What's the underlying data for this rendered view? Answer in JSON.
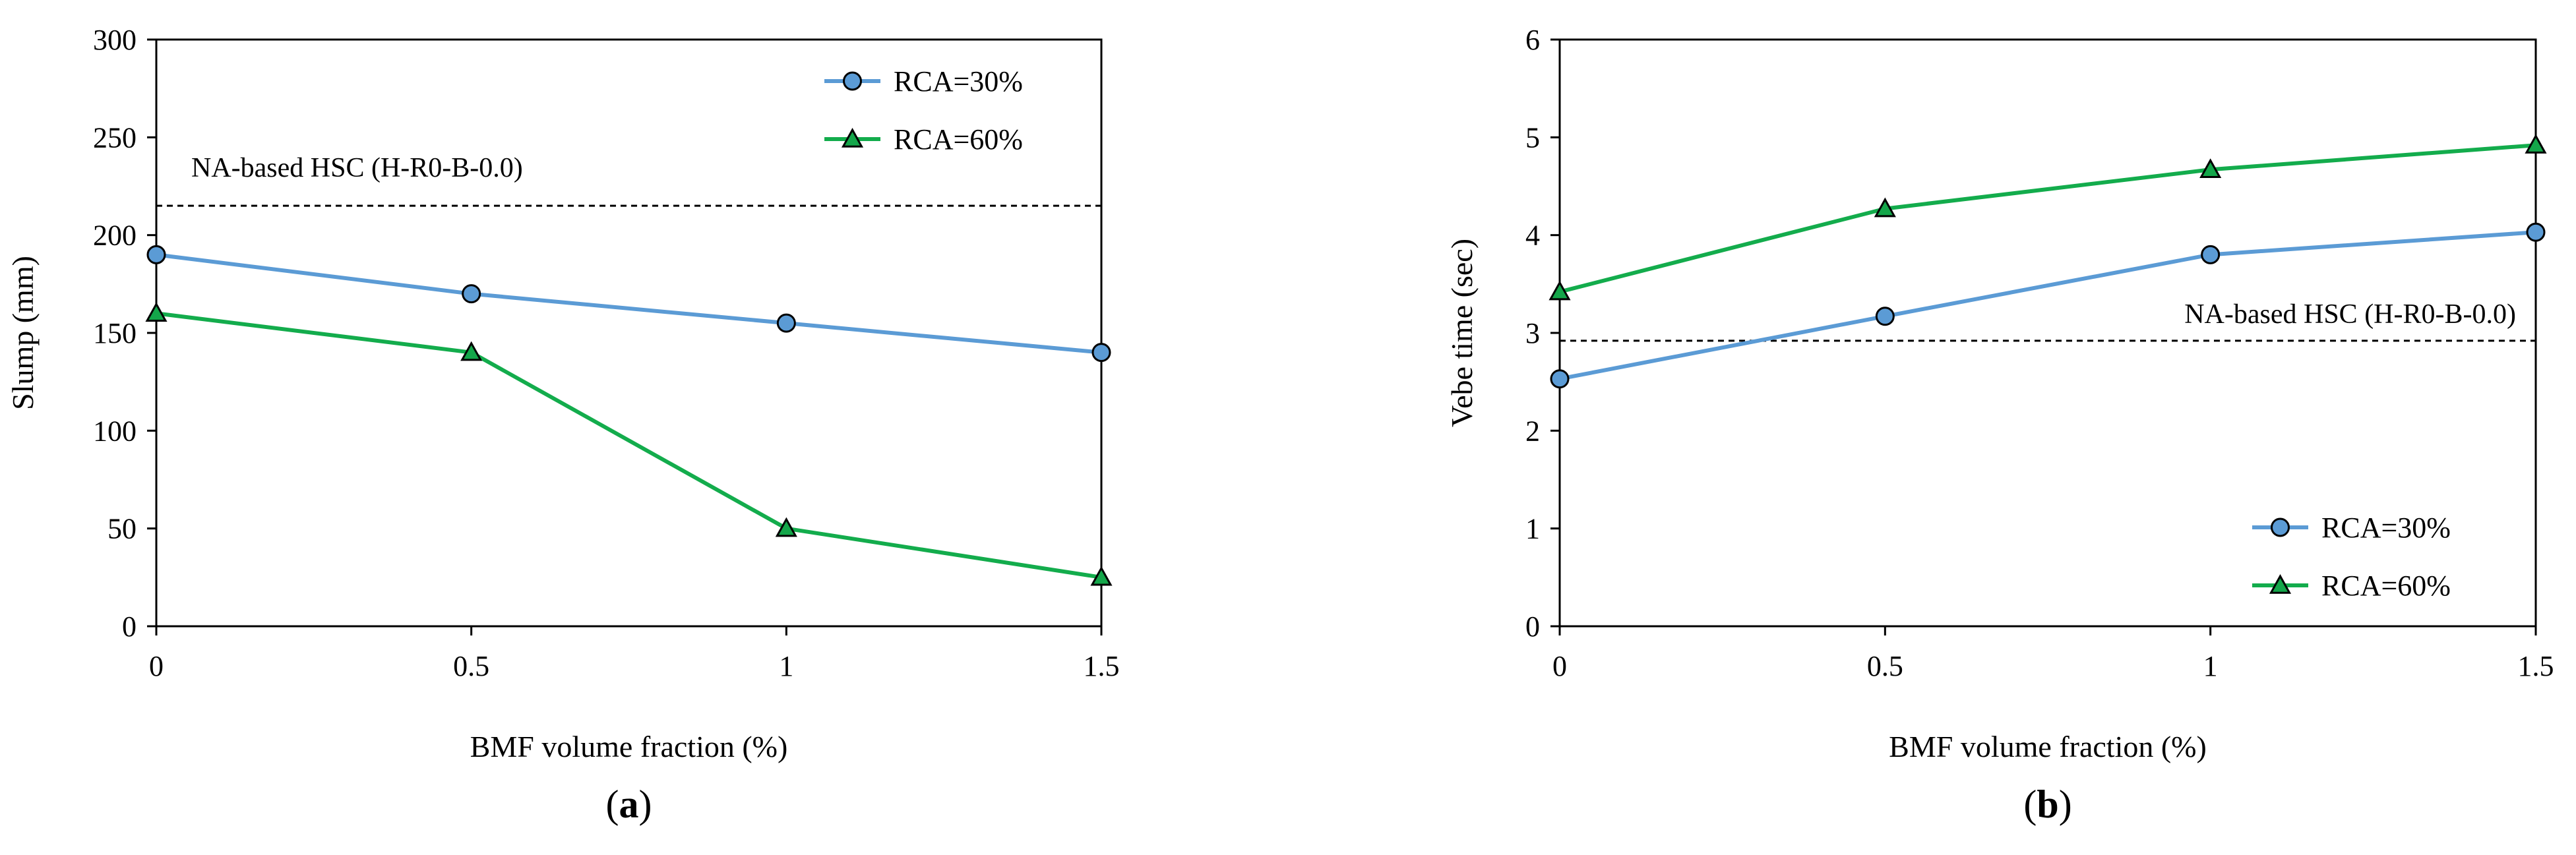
{
  "colors": {
    "series_30": "#5B9BD5",
    "series_30_marker": "#5B9BD5",
    "series_60": "#13AC4C",
    "series_60_marker": "#14A64A",
    "axis": "#000000",
    "reference": "#000000"
  },
  "chart_data": [
    {
      "id": "a",
      "type": "line",
      "panel_label": "a",
      "xlabel": "BMF volume fraction (%)",
      "ylabel": "Slump (mm)",
      "x": [
        0,
        0.5,
        1,
        1.5
      ],
      "x_ticks": [
        0,
        0.5,
        1,
        1.5
      ],
      "x_tick_labels": [
        "0",
        "0.5",
        "1",
        "1.5"
      ],
      "xlim": [
        0,
        1.5
      ],
      "ylim": [
        0,
        300
      ],
      "y_ticks": [
        0,
        50,
        100,
        150,
        200,
        250,
        300
      ],
      "grid": false,
      "legend_position": "top-right",
      "series": [
        {
          "name": "RCA=30%",
          "marker": "circle",
          "values": [
            190,
            170,
            155,
            140
          ]
        },
        {
          "name": "RCA=60%",
          "marker": "triangle",
          "values": [
            160,
            140,
            50,
            25
          ]
        }
      ],
      "reference_line": {
        "label": "NA-based HSC (H-R0-B-0.0)",
        "value": 215
      }
    },
    {
      "id": "b",
      "type": "line",
      "panel_label": "b",
      "xlabel": "BMF volume fraction (%)",
      "ylabel": "Vebe time (sec)",
      "x": [
        0,
        0.5,
        1,
        1.5
      ],
      "x_ticks": [
        0,
        0.5,
        1,
        1.5
      ],
      "x_tick_labels": [
        "0",
        "0.5",
        "1",
        "1.5"
      ],
      "xlim": [
        0,
        1.5
      ],
      "ylim": [
        0,
        6
      ],
      "y_ticks": [
        0,
        1,
        2,
        3,
        4,
        5,
        6
      ],
      "grid": false,
      "legend_position": "bottom-right",
      "series": [
        {
          "name": "RCA=30%",
          "marker": "circle",
          "values": [
            2.53,
            3.17,
            3.8,
            4.03
          ]
        },
        {
          "name": "RCA=60%",
          "marker": "triangle",
          "values": [
            3.42,
            4.27,
            4.67,
            4.92
          ]
        }
      ],
      "reference_line": {
        "label": "NA-based HSC (H-R0-B-0.0)",
        "value": 2.92
      }
    }
  ]
}
